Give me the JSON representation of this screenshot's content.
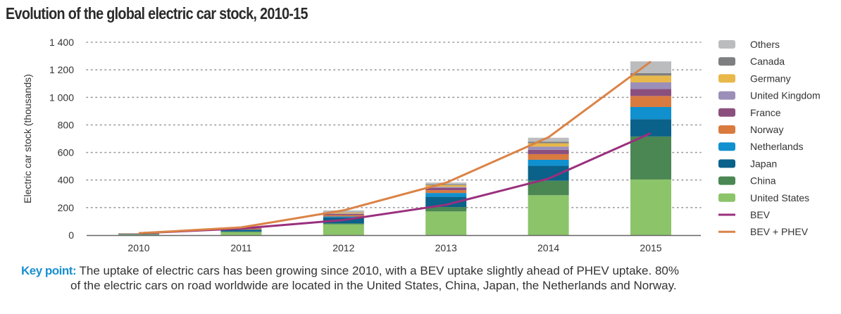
{
  "chart_data": {
    "type": "bar",
    "stacked": true,
    "title": "Evolution of the global electric car stock, 2010-15",
    "xlabel": "",
    "ylabel": "Electric car stock (thousands)",
    "ylim": [
      0,
      1400
    ],
    "yticks": [
      0,
      200,
      400,
      600,
      800,
      1000,
      1200,
      1400
    ],
    "ytick_labels": [
      "0",
      "200",
      "400",
      "600",
      "800",
      "1 000",
      "1 200",
      "1 400"
    ],
    "grid": "horizontal dotted",
    "legend_position": "right",
    "categories": [
      "2010",
      "2011",
      "2012",
      "2013",
      "2014",
      "2015"
    ],
    "series": [
      {
        "name": "United States",
        "color": "#8cc46a",
        "values": [
          3.8,
          21.5,
          78,
          172,
          290,
          404
        ]
      },
      {
        "name": "China",
        "color": "#4a8752",
        "values": [
          1.2,
          5,
          7,
          32,
          105,
          312
        ]
      },
      {
        "name": "Japan",
        "color": "#0a6189",
        "values": [
          3.5,
          13,
          44,
          74,
          108,
          126
        ]
      },
      {
        "name": "Netherlands",
        "color": "#1090cf",
        "values": [
          0.3,
          1.1,
          6.3,
          28,
          44,
          88
        ]
      },
      {
        "name": "Norway",
        "color": "#d97a3f",
        "values": [
          3.4,
          5.4,
          10,
          20,
          41,
          80
        ]
      },
      {
        "name": "France",
        "color": "#8b4f7d",
        "values": [
          0.3,
          3,
          9,
          18,
          31,
          50
        ]
      },
      {
        "name": "United Kingdom",
        "color": "#9b8fb9",
        "values": [
          0.7,
          1.3,
          3.4,
          7,
          24,
          49
        ]
      },
      {
        "name": "Germany",
        "color": "#e8b84a",
        "values": [
          0.5,
          2.3,
          6,
          12,
          24,
          49
        ]
      },
      {
        "name": "Canada",
        "color": "#7d7f80",
        "values": [
          0.1,
          0.5,
          2,
          5,
          10,
          18
        ]
      },
      {
        "name": "Others",
        "color": "#babcbe",
        "values": [
          0.5,
          3,
          14,
          14,
          30,
          85
        ]
      }
    ],
    "lines": [
      {
        "name": "BEV",
        "color": "#9a2f7d",
        "values": [
          14,
          48,
          110,
          220,
          410,
          740
        ]
      },
      {
        "name": "BEV + PHEV",
        "color": "#db8346",
        "values": [
          14,
          56,
          180,
          380,
          710,
          1260
        ]
      }
    ]
  },
  "key_point": {
    "label": "Key point:",
    "line1": "The uptake of electric cars has been growing since 2010, with a BEV uptake slightly ahead of PHEV uptake. 80%",
    "line2": "of the electric cars on road worldwide are located in the United States, China, Japan, the Netherlands and Norway."
  }
}
